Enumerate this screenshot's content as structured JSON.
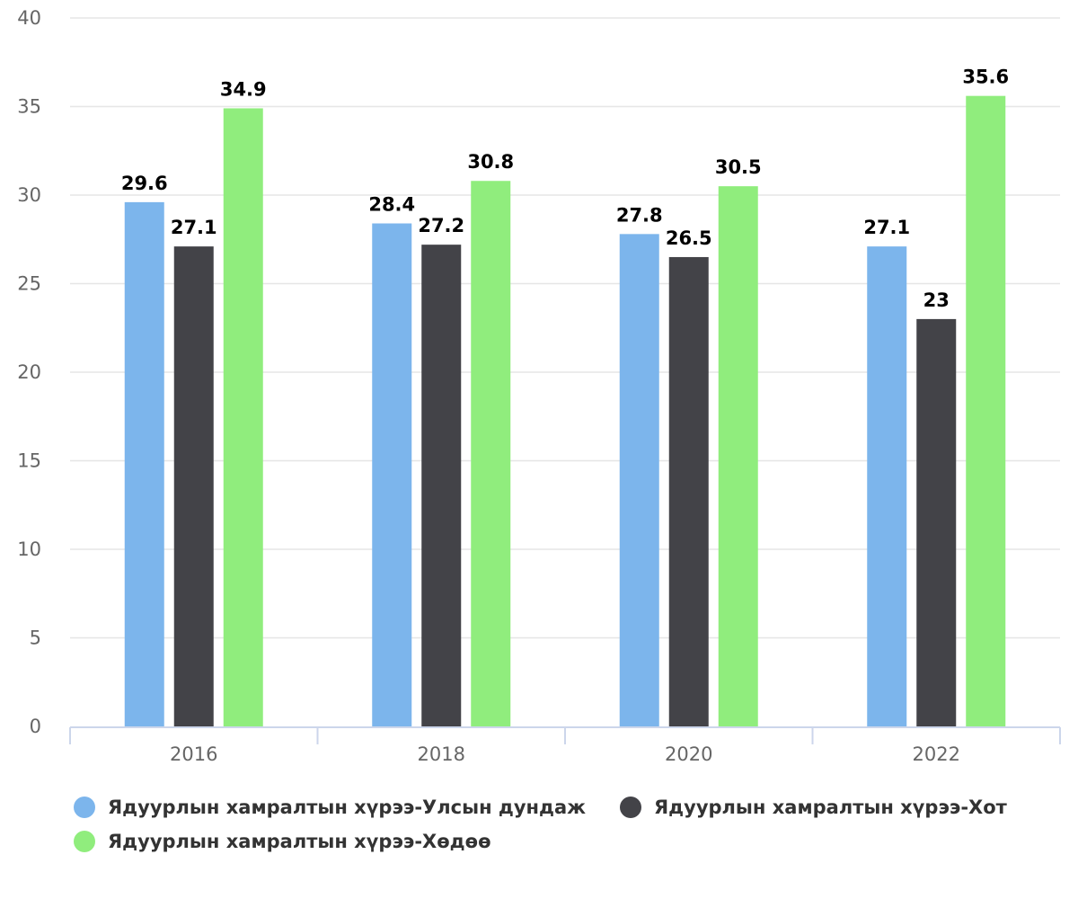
{
  "chart_data": {
    "type": "bar",
    "categories": [
      "2016",
      "2018",
      "2020",
      "2022"
    ],
    "series": [
      {
        "name": "Ядуурлын хамралтын хүрээ-Улсын дундаж",
        "color": "#7cb5ec",
        "values": [
          29.6,
          28.4,
          27.8,
          27.1
        ]
      },
      {
        "name": "Ядуурлын хамралтын хүрээ-Хот",
        "color": "#434348",
        "values": [
          27.1,
          27.2,
          26.5,
          23
        ]
      },
      {
        "name": "Ядуурлын хамралтын хүрээ-Хөдөө",
        "color": "#90ed7d",
        "values": [
          34.9,
          30.8,
          30.5,
          35.6
        ]
      }
    ],
    "title": "",
    "xlabel": "",
    "ylabel": "",
    "ylim": [
      0,
      40
    ],
    "yticks": [
      0,
      5,
      10,
      15,
      20,
      25,
      30,
      35,
      40
    ],
    "grid": true,
    "legend": "bottom-left",
    "data_labels": true
  }
}
